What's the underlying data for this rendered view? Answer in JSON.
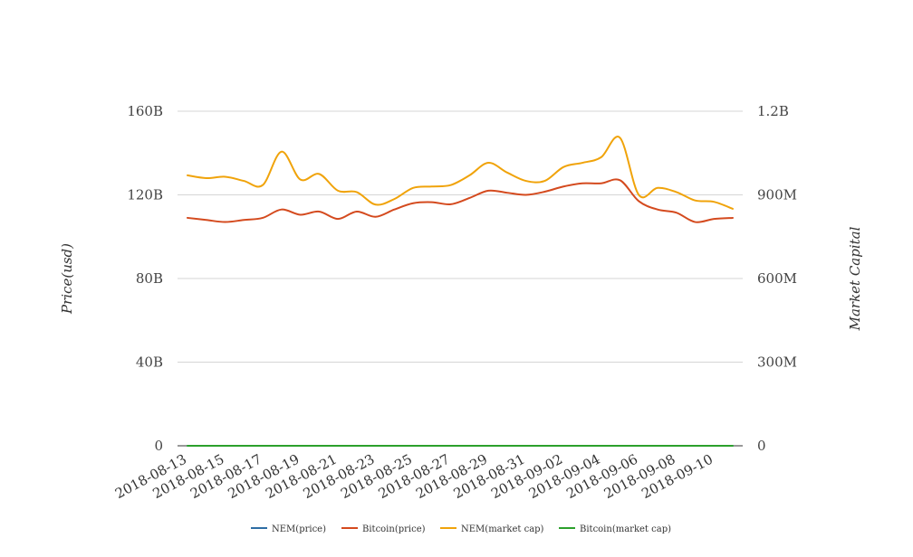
{
  "chart_data": {
    "type": "line",
    "title": "",
    "ylabel_left": "Price(usd)",
    "ylabel_right": "Market Capital",
    "left_axis": {
      "min": 0,
      "max": 160000000000,
      "ticks": [
        0,
        40000000000,
        80000000000,
        120000000000,
        160000000000
      ],
      "tick_labels": [
        "0",
        "40B",
        "80B",
        "120B",
        "160B"
      ]
    },
    "right_axis": {
      "min": 0,
      "max": 1200000000,
      "ticks": [
        0,
        300000000,
        600000000,
        900000000,
        1200000000
      ],
      "tick_labels": [
        "0",
        "300M",
        "600M",
        "900M",
        "1.2B"
      ]
    },
    "x_tick_labels": [
      "2018-08-13",
      "2018-08-15",
      "2018-08-17",
      "2018-08-19",
      "2018-08-21",
      "2018-08-23",
      "2018-08-25",
      "2018-08-27",
      "2018-08-29",
      "2018-08-31",
      "2018-09-02",
      "2018-09-04",
      "2018-09-06",
      "2018-09-08",
      "2018-09-10"
    ],
    "x": [
      "2018-08-13",
      "2018-08-14",
      "2018-08-15",
      "2018-08-16",
      "2018-08-17",
      "2018-08-18",
      "2018-08-19",
      "2018-08-20",
      "2018-08-21",
      "2018-08-22",
      "2018-08-23",
      "2018-08-24",
      "2018-08-25",
      "2018-08-26",
      "2018-08-27",
      "2018-08-28",
      "2018-08-29",
      "2018-08-30",
      "2018-08-31",
      "2018-09-01",
      "2018-09-02",
      "2018-09-03",
      "2018-09-04",
      "2018-09-05",
      "2018-09-06",
      "2018-09-07",
      "2018-09-08",
      "2018-09-09",
      "2018-09-10",
      "2018-09-11"
    ],
    "grid": true,
    "legend_position": "bottom",
    "series": [
      {
        "name": "NEM(price)",
        "axis": "left",
        "color": "#2e6da4",
        "values": [
          0.1,
          0.1,
          0.1,
          0.1,
          0.1,
          0.1,
          0.1,
          0.1,
          0.1,
          0.1,
          0.1,
          0.1,
          0.1,
          0.1,
          0.1,
          0.1,
          0.1,
          0.1,
          0.1,
          0.1,
          0.1,
          0.1,
          0.1,
          0.1,
          0.1,
          0.1,
          0.1,
          0.1,
          0.1,
          0.1
        ]
      },
      {
        "name": "Bitcoin(price)",
        "axis": "left",
        "color": "#d44a1e",
        "values": [
          109000000000,
          108000000000,
          107000000000,
          108000000000,
          109000000000,
          113000000000,
          110500000000,
          112000000000,
          108500000000,
          112000000000,
          109500000000,
          113000000000,
          116000000000,
          116500000000,
          115500000000,
          118500000000,
          122000000000,
          121000000000,
          120000000000,
          121500000000,
          124000000000,
          125500000000,
          125500000000,
          127000000000,
          117000000000,
          113000000000,
          111500000000,
          107000000000,
          108500000000,
          109000000000
        ]
      },
      {
        "name": "NEM(market cap)",
        "axis": "right",
        "color": "#f0a30a",
        "values": [
          970000000,
          960000000,
          965000000,
          950000000,
          935000000,
          1055000000,
          955000000,
          975000000,
          915000000,
          910000000,
          865000000,
          885000000,
          925000000,
          930000000,
          935000000,
          970000000,
          1015000000,
          980000000,
          950000000,
          950000000,
          1000000000,
          1015000000,
          1035000000,
          1105000000,
          900000000,
          925000000,
          910000000,
          880000000,
          875000000,
          850000000
        ]
      },
      {
        "name": "Bitcoin(market cap)",
        "axis": "right",
        "color": "#2ca02c",
        "values": [
          15000,
          15000,
          15000,
          15000,
          15000,
          15000,
          15000,
          15000,
          15000,
          15000,
          15000,
          15000,
          15000,
          15000,
          15000,
          15000,
          15000,
          15000,
          15000,
          15000,
          15000,
          15000,
          15000,
          15000,
          15000,
          15000,
          15000,
          15000,
          15000,
          15000
        ]
      }
    ]
  }
}
